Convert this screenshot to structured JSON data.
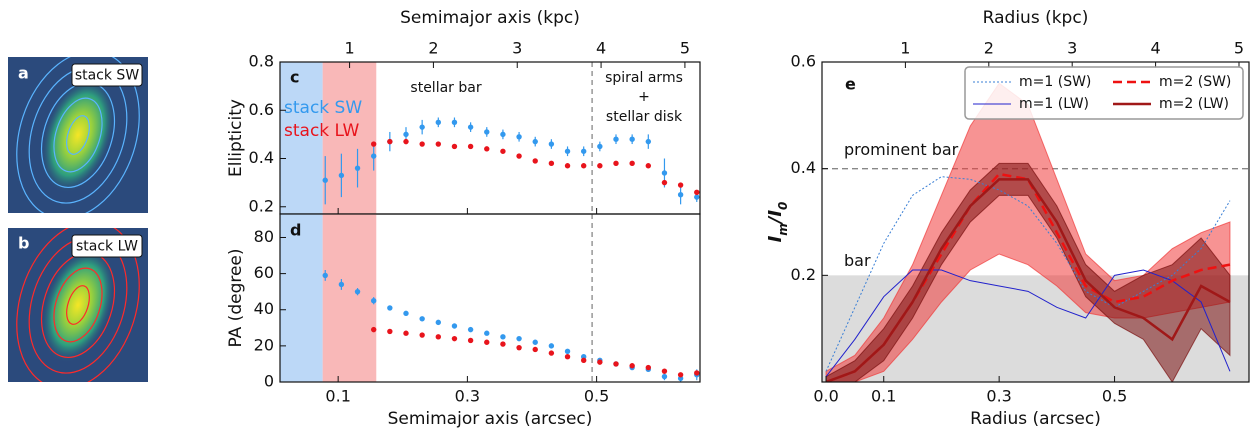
{
  "chart_data": [
    {
      "type": "image",
      "panel": "a",
      "label": "stack SW",
      "contour_color": "#5ab4ff"
    },
    {
      "type": "image",
      "panel": "b",
      "label": "stack LW",
      "contour_color": "#ff2a2a"
    },
    {
      "type": "errorbar",
      "panel": "c",
      "x2label": "Semimajor axis (kpc)",
      "ylabel": "Ellipticity",
      "xlim": [
        0.01,
        0.66
      ],
      "xticks": [
        0.1,
        0.3,
        0.5
      ],
      "x2lim": [
        0.17,
        5.18
      ],
      "x2ticks": [
        1,
        2,
        3,
        4,
        5
      ],
      "ylim": [
        0.17,
        0.8
      ],
      "yticks": [
        0.2,
        0.4,
        0.6,
        0.8
      ],
      "spans": [
        {
          "range": [
            0.01,
            0.076
          ],
          "color": "#bcd8f7"
        },
        {
          "range": [
            0.076,
            0.159
          ],
          "color": "#f9b8b8"
        }
      ],
      "vline": 0.493,
      "annotations": [
        "stellar bar",
        "spiral arms",
        "+",
        "stellar disk"
      ],
      "x": [
        0.08,
        0.105,
        0.13,
        0.155,
        0.18,
        0.205,
        0.23,
        0.255,
        0.28,
        0.305,
        0.33,
        0.355,
        0.38,
        0.405,
        0.43,
        0.455,
        0.48,
        0.505,
        0.53,
        0.555,
        0.58,
        0.605,
        0.63,
        0.655
      ],
      "series": [
        {
          "name": "stack SW",
          "color": "#3399ee",
          "values": [
            0.31,
            0.33,
            0.36,
            0.41,
            0.47,
            0.5,
            0.53,
            0.55,
            0.55,
            0.53,
            0.51,
            0.5,
            0.49,
            0.47,
            0.46,
            0.43,
            0.43,
            0.45,
            0.48,
            0.48,
            0.47,
            0.34,
            0.25,
            0.24
          ],
          "errors": [
            0.1,
            0.09,
            0.08,
            0.06,
            0.04,
            0.03,
            0.03,
            0.02,
            0.02,
            0.02,
            0.02,
            0.02,
            0.02,
            0.02,
            0.02,
            0.02,
            0.02,
            0.02,
            0.02,
            0.02,
            0.03,
            0.06,
            0.04,
            0.02
          ]
        },
        {
          "name": "stack LW",
          "color": "#e8141c",
          "values": [
            null,
            null,
            null,
            0.46,
            0.47,
            0.47,
            0.46,
            0.46,
            0.45,
            0.45,
            0.44,
            0.43,
            0.41,
            0.39,
            0.38,
            0.37,
            0.37,
            0.37,
            0.38,
            0.38,
            0.37,
            0.3,
            0.29,
            0.26
          ]
        }
      ]
    },
    {
      "type": "errorbar",
      "panel": "d",
      "xlabel": "Semimajor axis (arcsec)",
      "ylabel": "PA (degree)",
      "xlim": [
        0.01,
        0.66
      ],
      "xticks": [
        0.1,
        0.3,
        0.5
      ],
      "ylim": [
        0,
        93
      ],
      "yticks": [
        0,
        20,
        40,
        60,
        80
      ],
      "spans": [
        {
          "range": [
            0.01,
            0.076
          ],
          "color": "#bcd8f7"
        },
        {
          "range": [
            0.076,
            0.159
          ],
          "color": "#f9b8b8"
        }
      ],
      "vline": 0.493,
      "x": [
        0.08,
        0.105,
        0.13,
        0.155,
        0.18,
        0.205,
        0.23,
        0.255,
        0.28,
        0.305,
        0.33,
        0.355,
        0.38,
        0.405,
        0.43,
        0.455,
        0.48,
        0.505,
        0.53,
        0.555,
        0.58,
        0.605,
        0.63,
        0.655
      ],
      "series": [
        {
          "color": "#3399ee",
          "values": [
            59,
            54,
            50,
            45,
            41,
            38,
            35,
            33,
            31,
            29,
            27,
            25,
            24,
            22,
            20,
            17,
            14,
            12,
            10,
            8,
            7,
            3,
            2,
            4
          ],
          "errors": [
            3,
            3,
            2,
            2,
            1,
            1,
            1,
            1,
            1,
            1,
            1,
            1,
            1,
            1,
            1,
            1,
            1,
            1,
            1,
            1,
            1,
            2,
            3,
            3
          ]
        },
        {
          "color": "#e8141c",
          "values": [
            null,
            null,
            null,
            29,
            28,
            27,
            26,
            25,
            24,
            23,
            22,
            21,
            19,
            18,
            16,
            14,
            12,
            11,
            10,
            9,
            8,
            6,
            4,
            5
          ]
        }
      ]
    },
    {
      "type": "line",
      "panel": "e",
      "x2label": "Radius (kpc)",
      "xlabel": "Radius (arcsec)",
      "ylabel": [
        "I",
        "m",
        "/I",
        "0"
      ],
      "xlim": [
        -0.007,
        0.733
      ],
      "xticks": [
        {
          "value": 0,
          "label": "0.0"
        },
        0.1,
        0.3,
        0.5
      ],
      "x2lim": [
        0,
        5.12
      ],
      "x2ticks": [
        1,
        2,
        3,
        4,
        5
      ],
      "ylim": [
        0,
        0.6
      ],
      "yticks": [
        0.2,
        0.4,
        0.6
      ],
      "shade": {
        "range": [
          0,
          0.2
        ],
        "color": "#dcdcdc",
        "label": "bar"
      },
      "hline": {
        "value": 0.4,
        "label": "prominent bar"
      },
      "legend": "upper right",
      "x": [
        0,
        0.05,
        0.1,
        0.15,
        0.2,
        0.25,
        0.3,
        0.35,
        0.4,
        0.45,
        0.5,
        0.55,
        0.6,
        0.65,
        0.7
      ],
      "series": [
        {
          "name": "m=1 (SW)",
          "color": "#3a7fd5",
          "dash": "dotted",
          "width": 1,
          "values": [
            0.02,
            0.14,
            0.26,
            0.35,
            0.385,
            0.38,
            0.36,
            0.33,
            0.26,
            0.17,
            0.14,
            0.17,
            0.2,
            0.25,
            0.34
          ]
        },
        {
          "name": "m=1 (LW)",
          "color": "#2222cc",
          "dash": "solid",
          "width": 1,
          "values": [
            0.01,
            0.08,
            0.16,
            0.21,
            0.21,
            0.19,
            0.18,
            0.17,
            0.14,
            0.12,
            0.2,
            0.21,
            0.19,
            0.15,
            0.02
          ]
        },
        {
          "name": "m=2 (SW)",
          "color": "#ee1111",
          "dash": "dashed",
          "width": 2.5,
          "band_color": "#f03a3a",
          "values": [
            0,
            0.02,
            0.07,
            0.15,
            0.24,
            0.33,
            0.39,
            0.38,
            0.28,
            0.18,
            0.15,
            0.16,
            0.19,
            0.21,
            0.22
          ],
          "lower": [
            0,
            0,
            0.02,
            0.08,
            0.15,
            0.21,
            0.24,
            0.22,
            0.18,
            0.13,
            0.12,
            0.12,
            0.13,
            0.14,
            0.15
          ],
          "upper": [
            0.02,
            0.05,
            0.12,
            0.22,
            0.35,
            0.48,
            0.56,
            0.52,
            0.38,
            0.24,
            0.19,
            0.2,
            0.25,
            0.28,
            0.3
          ]
        },
        {
          "name": "m=2 (LW)",
          "color": "#a01818",
          "dash": "solid",
          "width": 2.5,
          "band_color": "#7a1010",
          "values": [
            0,
            0.02,
            0.07,
            0.15,
            0.25,
            0.33,
            0.38,
            0.38,
            0.3,
            0.19,
            0.14,
            0.12,
            0.08,
            0.18,
            0.15
          ],
          "lower": [
            0,
            0,
            0.04,
            0.12,
            0.22,
            0.3,
            0.35,
            0.35,
            0.27,
            0.16,
            0.11,
            0.08,
            0,
            0.1,
            0.05
          ],
          "upper": [
            0.01,
            0.04,
            0.1,
            0.18,
            0.28,
            0.36,
            0.41,
            0.41,
            0.33,
            0.22,
            0.17,
            0.2,
            0.22,
            0.27,
            0.2
          ]
        }
      ]
    }
  ]
}
